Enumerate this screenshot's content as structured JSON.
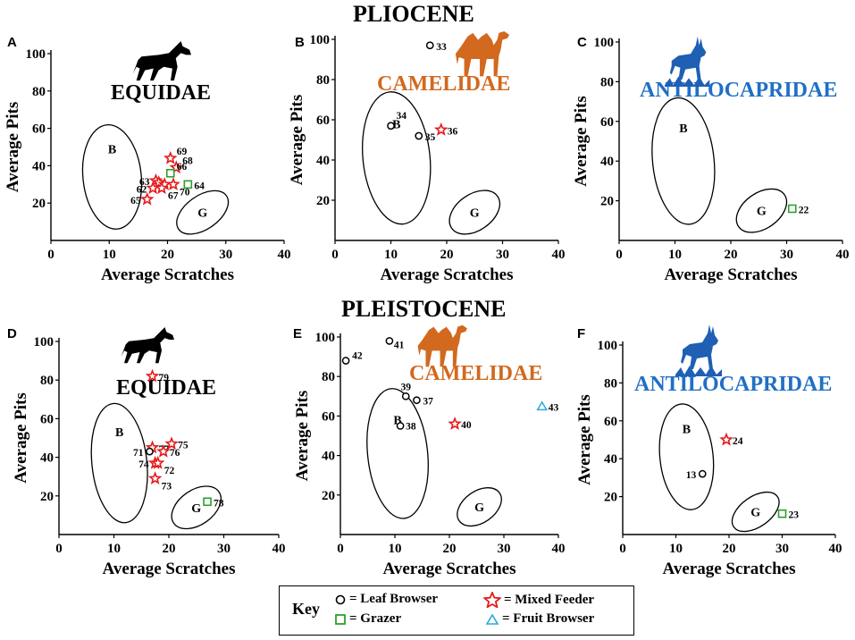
{
  "periods": {
    "top": "PLIOCENE",
    "bottom": "PLEISTOCENE"
  },
  "colors": {
    "leaf": "#000000",
    "grazer": "#2ca02c",
    "mixed": "#e41a1c",
    "fruit": "#29a9e0",
    "equidae_title": "#000000",
    "camelidae_title": "#d2691e",
    "antilocapridae_title": "#1f6fc5",
    "horse_icon": "#000000",
    "camel_icon": "#d2691e",
    "pronghorn_icon": "#1f5fb4"
  },
  "key": {
    "title": "Key",
    "items": [
      {
        "type": "leaf",
        "label": "= Leaf Browser"
      },
      {
        "type": "grazer",
        "label": "= Grazer"
      },
      {
        "type": "mixed",
        "label": "= Mixed Feeder"
      },
      {
        "type": "fruit",
        "label": "= Fruit Browser"
      }
    ]
  },
  "chart_data": [
    {
      "panel": "A",
      "type": "scatter",
      "family": "EQUIDAE",
      "period": "PLIOCENE",
      "xlabel": "Average  Scratches",
      "ylabel": "Average Pits",
      "xlim": [
        0,
        40
      ],
      "ylim": [
        0,
        100
      ],
      "xticks": [
        "0",
        "10",
        "20",
        "30",
        "40"
      ],
      "yticks": [
        "20",
        "40",
        "60",
        "80",
        "100"
      ],
      "ellipses": [
        {
          "label": "B",
          "cx": 10.5,
          "cy": 34,
          "rx": 5,
          "ry": 28
        },
        {
          "label": "G",
          "cx": 26,
          "cy": 15,
          "rx": 5,
          "ry": 9
        }
      ],
      "points": [
        {
          "label": "69",
          "x": 20.5,
          "y": 44,
          "feeder": "mixed"
        },
        {
          "label": "68",
          "x": 21.5,
          "y": 39,
          "feeder": "mixed"
        },
        {
          "label": "66",
          "x": 20.5,
          "y": 36,
          "feeder": "grazer"
        },
        {
          "label": "63",
          "x": 18,
          "y": 32,
          "feeder": "mixed"
        },
        {
          "label": "",
          "x": 18.5,
          "y": 31,
          "feeder": "mixed"
        },
        {
          "label": "",
          "x": 19.5,
          "y": 30,
          "feeder": "mixed"
        },
        {
          "label": "62",
          "x": 17.5,
          "y": 28,
          "feeder": "mixed"
        },
        {
          "label": "67",
          "x": 19,
          "y": 28,
          "feeder": "mixed"
        },
        {
          "label": "70",
          "x": 21,
          "y": 30,
          "feeder": "mixed"
        },
        {
          "label": "64",
          "x": 23.5,
          "y": 30,
          "feeder": "grazer"
        },
        {
          "label": "65",
          "x": 16.5,
          "y": 22,
          "feeder": "mixed"
        }
      ]
    },
    {
      "panel": "B",
      "type": "scatter",
      "family": "CAMELIDAE",
      "period": "PLIOCENE",
      "xlabel": "Average  Scratches",
      "ylabel": "Average Pits",
      "xlim": [
        0,
        40
      ],
      "ylim": [
        0,
        100
      ],
      "xticks": [
        "0",
        "10",
        "20",
        "30",
        "40"
      ],
      "yticks": [
        "20",
        "40",
        "60",
        "80",
        "100"
      ],
      "ellipses": [
        {
          "label": "B",
          "cx": 11,
          "cy": 41,
          "rx": 6,
          "ry": 33
        },
        {
          "label": "G",
          "cx": 25,
          "cy": 14,
          "rx": 5,
          "ry": 9
        }
      ],
      "points": [
        {
          "label": "33",
          "x": 17,
          "y": 97,
          "feeder": "leaf"
        },
        {
          "label": "34",
          "x": 10,
          "y": 57,
          "feeder": "leaf"
        },
        {
          "label": "35",
          "x": 15,
          "y": 52,
          "feeder": "leaf"
        },
        {
          "label": "36",
          "x": 19,
          "y": 55,
          "feeder": "mixed"
        }
      ]
    },
    {
      "panel": "C",
      "type": "scatter",
      "family": "ANTILOCAPRIDAE",
      "period": "PLIOCENE",
      "xlabel": "Average  Scratches",
      "ylabel": "Average Pits",
      "xlim": [
        0,
        40
      ],
      "ylim": [
        0,
        100
      ],
      "xticks": [
        "0",
        "10",
        "20",
        "30",
        "40"
      ],
      "yticks": [
        "20",
        "40",
        "60",
        "80",
        "100"
      ],
      "ellipses": [
        {
          "label": "B",
          "cx": 11.5,
          "cy": 40,
          "rx": 5.5,
          "ry": 32
        },
        {
          "label": "G",
          "cx": 25.5,
          "cy": 15,
          "rx": 5,
          "ry": 9
        }
      ],
      "points": [
        {
          "label": "22",
          "x": 31,
          "y": 16,
          "feeder": "grazer"
        }
      ]
    },
    {
      "panel": "D",
      "type": "scatter",
      "family": "EQUIDAE",
      "period": "PLEISTOCENE",
      "xlabel": "Average  Scratches",
      "ylabel": "Average Pits",
      "xlim": [
        0,
        40
      ],
      "ylim": [
        0,
        100
      ],
      "xticks": [
        "0",
        "10",
        "20",
        "30",
        "40"
      ],
      "yticks": [
        "20",
        "40",
        "60",
        "80",
        "100"
      ],
      "ellipses": [
        {
          "label": "B",
          "cx": 11,
          "cy": 37,
          "rx": 5,
          "ry": 31
        },
        {
          "label": "G",
          "cx": 25,
          "cy": 14,
          "rx": 5,
          "ry": 9
        }
      ],
      "points": [
        {
          "label": "79",
          "x": 17,
          "y": 82,
          "feeder": "mixed"
        },
        {
          "label": "77",
          "x": 17,
          "y": 45,
          "feeder": "mixed"
        },
        {
          "label": "75",
          "x": 20.5,
          "y": 47,
          "feeder": "mixed"
        },
        {
          "label": "71",
          "x": 16.5,
          "y": 43,
          "feeder": "leaf"
        },
        {
          "label": "76",
          "x": 19,
          "y": 43,
          "feeder": "mixed"
        },
        {
          "label": "74",
          "x": 17.5,
          "y": 37,
          "feeder": "mixed"
        },
        {
          "label": "72",
          "x": 18,
          "y": 37,
          "feeder": "mixed"
        },
        {
          "label": "73",
          "x": 17.5,
          "y": 29,
          "feeder": "mixed"
        },
        {
          "label": "78",
          "x": 27,
          "y": 17,
          "feeder": "grazer"
        }
      ]
    },
    {
      "panel": "E",
      "type": "scatter",
      "family": "CAMELIDAE",
      "period": "PLEISTOCENE",
      "xlabel": "Average  Scratches",
      "ylabel": "Average Pits",
      "xlim": [
        0,
        40
      ],
      "ylim": [
        0,
        100
      ],
      "xticks": [
        "0",
        "10",
        "20",
        "30",
        "40"
      ],
      "yticks": [
        "20",
        "40",
        "60",
        "80",
        "100"
      ],
      "ellipses": [
        {
          "label": "B",
          "cx": 10.5,
          "cy": 41,
          "rx": 5.5,
          "ry": 33
        },
        {
          "label": "G",
          "cx": 25.5,
          "cy": 14,
          "rx": 4.5,
          "ry": 8
        }
      ],
      "points": [
        {
          "label": "42",
          "x": 1,
          "y": 88,
          "feeder": "leaf"
        },
        {
          "label": "41",
          "x": 9,
          "y": 98,
          "feeder": "leaf"
        },
        {
          "label": "39",
          "x": 12,
          "y": 70,
          "feeder": "leaf"
        },
        {
          "label": "37",
          "x": 14,
          "y": 68,
          "feeder": "leaf"
        },
        {
          "label": "38",
          "x": 11,
          "y": 55,
          "feeder": "leaf"
        },
        {
          "label": "40",
          "x": 21,
          "y": 56,
          "feeder": "mixed"
        },
        {
          "label": "43",
          "x": 37,
          "y": 65,
          "feeder": "fruit"
        }
      ]
    },
    {
      "panel": "F",
      "type": "scatter",
      "family": "ANTILOCAPRIDAE",
      "period": "PLEISTOCENE",
      "xlabel": "Average  Scratches",
      "ylabel": "Average Pits",
      "xlim": [
        0,
        40
      ],
      "ylim": [
        0,
        100
      ],
      "xticks": [
        "0",
        "10",
        "20",
        "30",
        "40"
      ],
      "yticks": [
        "20",
        "40",
        "60",
        "80",
        "100"
      ],
      "ellipses": [
        {
          "label": "B",
          "cx": 12,
          "cy": 41,
          "rx": 5,
          "ry": 28
        },
        {
          "label": "G",
          "cx": 25,
          "cy": 12,
          "rx": 5,
          "ry": 8
        }
      ],
      "points": [
        {
          "label": "24",
          "x": 19.5,
          "y": 50,
          "feeder": "mixed"
        },
        {
          "label": "13",
          "x": 15,
          "y": 32,
          "feeder": "leaf"
        },
        {
          "label": "23",
          "x": 30,
          "y": 11,
          "feeder": "grazer"
        }
      ]
    }
  ]
}
